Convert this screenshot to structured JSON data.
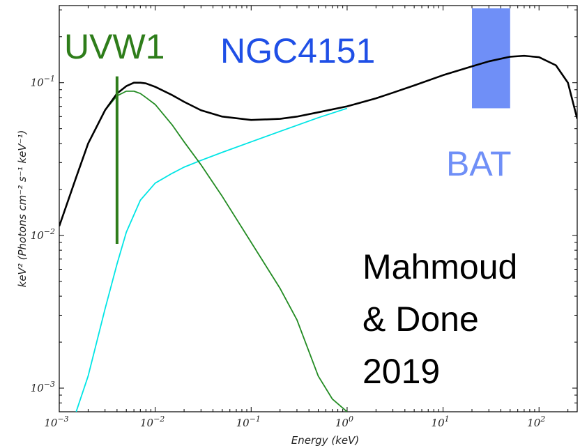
{
  "chart_data": {
    "type": "line",
    "xlabel": "Energy (keV)",
    "ylabel": "keV² (Photons cm⁻² s⁻¹ keV⁻¹)",
    "xscale": "log",
    "yscale": "log",
    "xlim": [
      0.001,
      250
    ],
    "ylim": [
      0.0007,
      0.32
    ],
    "x_ticks": [
      {
        "value": 0.001,
        "base": "10",
        "exp": "−3"
      },
      {
        "value": 0.01,
        "base": "10",
        "exp": "−2"
      },
      {
        "value": 0.1,
        "base": "10",
        "exp": "−1"
      },
      {
        "value": 1,
        "base": "10",
        "exp": "0"
      },
      {
        "value": 10,
        "base": "10",
        "exp": "1"
      },
      {
        "value": 100,
        "base": "10",
        "exp": "2"
      }
    ],
    "y_ticks": [
      {
        "value": 0.001,
        "base": "10",
        "exp": "−3"
      },
      {
        "value": 0.01,
        "base": "10",
        "exp": "−2"
      },
      {
        "value": 0.1,
        "base": "10",
        "exp": "−1"
      }
    ],
    "series": [
      {
        "color": "#000000",
        "x": [
          0.001,
          0.0015,
          0.002,
          0.003,
          0.004,
          0.005,
          0.006,
          0.007,
          0.008,
          0.01,
          0.015,
          0.02,
          0.03,
          0.05,
          0.1,
          0.2,
          0.3,
          0.5,
          1,
          2,
          3,
          5,
          10,
          20,
          30,
          50,
          70,
          100,
          150,
          200,
          250
        ],
        "y": [
          0.0115,
          0.024,
          0.04,
          0.066,
          0.085,
          0.095,
          0.1,
          0.1,
          0.099,
          0.094,
          0.083,
          0.075,
          0.066,
          0.06,
          0.057,
          0.058,
          0.06,
          0.064,
          0.07,
          0.079,
          0.086,
          0.096,
          0.112,
          0.128,
          0.138,
          0.148,
          0.15,
          0.147,
          0.13,
          0.1,
          0.058
        ]
      },
      {
        "color": "#228b22",
        "x": [
          0.002,
          0.003,
          0.004,
          0.005,
          0.006,
          0.007,
          0.008,
          0.01,
          0.015,
          0.02,
          0.03,
          0.05,
          0.1,
          0.2,
          0.3,
          0.5,
          0.7,
          1
        ],
        "y": [
          0.04,
          0.066,
          0.082,
          0.088,
          0.088,
          0.085,
          0.08,
          0.072,
          0.053,
          0.041,
          0.029,
          0.018,
          0.009,
          0.0045,
          0.0028,
          0.0012,
          0.00085,
          0.0007
        ]
      },
      {
        "color": "#00e5e5",
        "x": [
          0.0015,
          0.002,
          0.003,
          0.004,
          0.005,
          0.007,
          0.01,
          0.015,
          0.02,
          0.03,
          0.05,
          0.1,
          0.2,
          0.5,
          1
        ],
        "y": [
          0.0007,
          0.0012,
          0.0033,
          0.0065,
          0.0105,
          0.017,
          0.022,
          0.0255,
          0.028,
          0.031,
          0.035,
          0.041,
          0.048,
          0.059,
          0.068
        ]
      }
    ],
    "annotations": {
      "uvw1": {
        "label": "UVW1",
        "color": "#2e7d1a",
        "x": 0.004,
        "y_bottom": 0.0088,
        "y_top": 0.11
      },
      "bat": {
        "label": "BAT",
        "color": "#6f8ff7",
        "x_start": 20,
        "x_end": 50,
        "y_bottom": 0.068,
        "y_top": 0.32
      },
      "object_label": {
        "text": "NGC4151",
        "color": "#1f4fe6"
      },
      "citation_lines": [
        "Mahmoud",
        "& Done",
        "2019"
      ]
    }
  }
}
